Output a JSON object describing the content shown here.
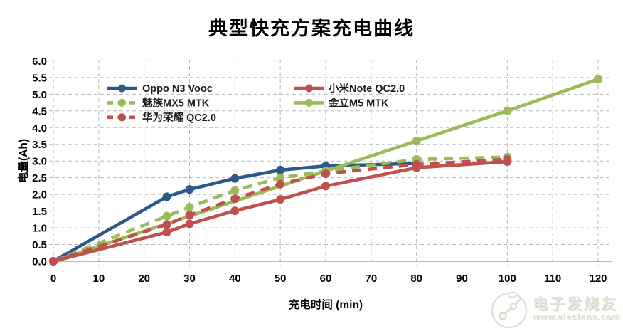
{
  "title": "典型快充方案充电曲线",
  "watermark": {
    "brand": "电子发烧友",
    "url": "www.elecfans.com"
  },
  "colors": {
    "background": "#ffffff",
    "grid": "#b8b8b8",
    "axis": "#a6a6a6",
    "text": "#000000",
    "legend_text": "#1a1a1a",
    "blue": "#2b5a8a",
    "red": "#c0504d",
    "green": "#9bbb59",
    "watermark": "#e3e0d6"
  },
  "chart_data": {
    "type": "line",
    "title": "典型快充方案充电曲线",
    "xlabel": "充电时间 (min)",
    "ylabel": "电量(Ah)",
    "xlim": [
      0,
      120
    ],
    "ylim": [
      0,
      6
    ],
    "xticks": [
      0,
      10,
      20,
      30,
      40,
      50,
      60,
      70,
      80,
      90,
      100,
      110,
      120
    ],
    "yticks": [
      0.0,
      0.5,
      1.0,
      1.5,
      2.0,
      2.5,
      3.0,
      3.5,
      4.0,
      4.5,
      5.0,
      5.5,
      6.0
    ],
    "grid": true,
    "legend_position": "upper-left, two columns inside plot",
    "series": [
      {
        "name": "Oppo N3 Vooc",
        "color": "#2b5a8a",
        "style": "solid",
        "marker": "circle",
        "x": [
          0,
          25,
          30,
          40,
          50,
          60,
          80
        ],
        "y": [
          0,
          1.93,
          2.15,
          2.48,
          2.73,
          2.85,
          2.93
        ]
      },
      {
        "name": "魅族MX5 MTK",
        "color": "#9bbb59",
        "style": "dashed",
        "marker": "circle",
        "x": [
          0,
          25,
          30,
          40,
          50,
          60,
          80,
          100
        ],
        "y": [
          0,
          1.35,
          1.62,
          2.12,
          2.5,
          2.7,
          3.05,
          3.12
        ]
      },
      {
        "name": "金立M5 MTK",
        "color": "#9bbb59",
        "style": "solid",
        "marker": "circle",
        "x": [
          0,
          80,
          100,
          120
        ],
        "y": [
          0,
          3.6,
          4.5,
          5.45
        ]
      },
      {
        "name": "华为荣耀 QC2.0",
        "color": "#c0504d",
        "style": "dashed",
        "marker": "circle",
        "x": [
          0,
          25,
          30,
          40,
          50,
          60,
          80,
          100
        ],
        "y": [
          0,
          1.1,
          1.38,
          1.87,
          2.31,
          2.62,
          2.9,
          3.05
        ]
      },
      {
        "name": "小米Note QC2.0",
        "color": "#c0504d",
        "style": "solid",
        "marker": "circle",
        "x": [
          0,
          25,
          30,
          40,
          50,
          60,
          80,
          100
        ],
        "y": [
          0,
          0.87,
          1.12,
          1.51,
          1.85,
          2.25,
          2.8,
          2.98
        ]
      }
    ],
    "legend_columns": [
      [
        0,
        1,
        3
      ],
      [
        4,
        2
      ]
    ]
  }
}
